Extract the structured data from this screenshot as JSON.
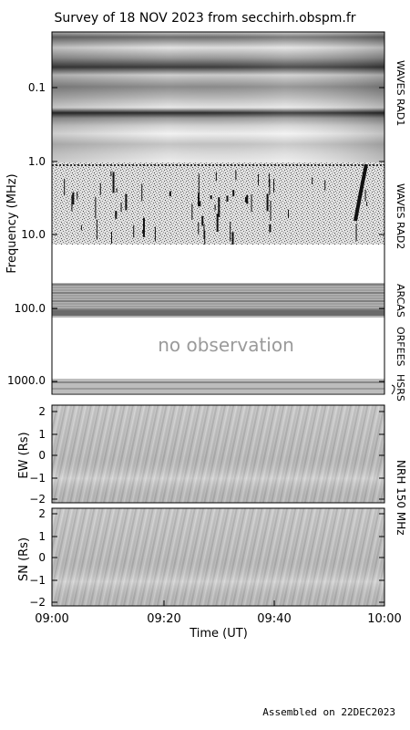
{
  "title": "Survey of 18 NOV 2023 from secchirh.obspm.fr",
  "footer": "Assembled on 22DEC2023",
  "no_observation_text": "no observation",
  "colors": {
    "axis": "#000000",
    "background": "#ffffff",
    "missing": "#ffffff"
  },
  "chart_data": [
    {
      "type": "heatmap",
      "name_panel": "dynamic-spectrum",
      "ylabel": "Frequency (MHz)",
      "yscale": "log",
      "yaxis_inverted": true,
      "yticks": [
        "0.1",
        "1.0",
        "10.0",
        "100.0",
        "1000.0"
      ],
      "instruments": [
        {
          "label": "WAVES RAD1",
          "range_mhz": [
            0.02,
            1.04
          ]
        },
        {
          "label": "WAVES RAD2",
          "range_mhz": [
            1.04,
            15.0
          ]
        },
        {
          "label": "ARCAS",
          "range_mhz": [
            40,
            110
          ]
        },
        {
          "label": "ORFEES",
          "range_mhz": [
            140,
            900
          ],
          "status": "no observation"
        },
        {
          "label": "HSRS",
          "range_mhz": [
            900,
            1100
          ]
        }
      ]
    },
    {
      "type": "heatmap",
      "name_panel": "nrh-ew",
      "ylabel": "EW (Rs)",
      "ylim": [
        -2.2,
        2.2
      ],
      "yticks": [
        "2",
        "1",
        "0",
        "−1",
        "−2"
      ]
    },
    {
      "type": "heatmap",
      "name_panel": "nrh-sn",
      "ylabel": "SN (Rs)",
      "ylim": [
        -2.2,
        2.2
      ],
      "yticks": [
        "2",
        "1",
        "0",
        "−1",
        "−2"
      ]
    }
  ],
  "nrh_label": "NRH 150 MHz",
  "xaxis": {
    "label": "Time (UT)",
    "ticks": [
      "09:00",
      "09:20",
      "09:40",
      "10:00"
    ]
  }
}
